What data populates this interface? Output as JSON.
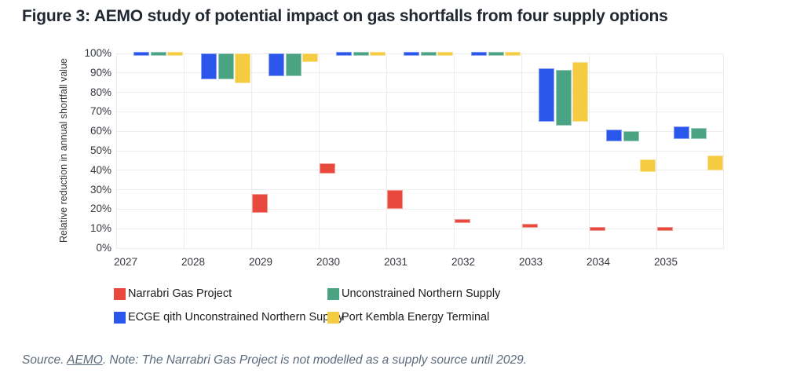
{
  "title": "Figure 3: AEMO study of potential impact on gas shortfalls from four supply options",
  "source_note": {
    "prefix": "Source. ",
    "link_text": "AEMO",
    "suffix": ". Note: The Narrabri Gas Project is not modelled as a supply source until 2029."
  },
  "colors": {
    "narrabri_red": "#e8493c",
    "ecge_blue": "#2a56ec",
    "northern_green": "#4aa383",
    "port_kembla_yellow": "#f4cb41",
    "title_text": "#212832",
    "axis_text": "#34383e",
    "source_text": "#5b6b7d",
    "gridline": "#ececec"
  },
  "chart_data": {
    "type": "bar",
    "subtype": "floating-range-columns",
    "title": "Figure 3: AEMO study of potential impact on gas shortfalls from four supply options",
    "ylabel": "Relative reduction in annual shortfall value",
    "xlabel": "",
    "ylim": [
      0,
      100
    ],
    "ytick_step": 10,
    "ytick_suffix": "%",
    "grid": true,
    "legend_position": "bottom",
    "range_meaning": "each bar spans [min,max] percent relative reduction in annual shortfall value",
    "categories": [
      "2027",
      "2028",
      "2029",
      "2030",
      "2031",
      "2032",
      "2033",
      "2034",
      "2035"
    ],
    "series": [
      {
        "key": "narrabri-gas-project",
        "name": "Narrabri Gas Project",
        "color": "#e8493c",
        "ranges": [
          null,
          null,
          [
            18,
            28
          ],
          [
            38.5,
            43.5
          ],
          [
            20,
            30
          ],
          [
            13,
            14.5
          ],
          [
            10.5,
            12.5
          ],
          [
            9,
            11
          ],
          [
            9,
            11
          ]
        ]
      },
      {
        "key": "ecge-with-unconstrained-northern-supply",
        "name": "ECGE qith Unconstrained Northern Supply",
        "color": "#2a56ec",
        "ranges": [
          [
            99.5,
            100
          ],
          [
            86.5,
            100
          ],
          [
            88.5,
            100
          ],
          [
            99.5,
            100
          ],
          [
            99.5,
            100
          ],
          [
            99.5,
            100
          ],
          [
            65,
            92.5
          ],
          [
            55,
            61
          ],
          [
            56,
            62.5
          ]
        ]
      },
      {
        "key": "unconstrained-northern-supply",
        "name": "Unconstrained Northern Supply",
        "color": "#4aa383",
        "ranges": [
          [
            99.5,
            100
          ],
          [
            86.5,
            100
          ],
          [
            88.5,
            100
          ],
          [
            99.5,
            100
          ],
          [
            99.5,
            100
          ],
          [
            99.5,
            100
          ],
          [
            63,
            91.5
          ],
          [
            55,
            60
          ],
          [
            56,
            61.5
          ]
        ]
      },
      {
        "key": "port-kembla-energy-terminal",
        "name": "Port Kembla Energy Terminal",
        "color": "#f4cb41",
        "ranges": [
          [
            99.5,
            100
          ],
          [
            84.5,
            100
          ],
          [
            95.5,
            100
          ],
          [
            99.5,
            100
          ],
          [
            99.5,
            100
          ],
          [
            99.5,
            100
          ],
          [
            65,
            95.5
          ],
          [
            39,
            45.5
          ],
          [
            40,
            47.5
          ]
        ]
      }
    ],
    "legend": {
      "items": [
        {
          "label": "Narrabri Gas Project",
          "color": "#e8493c"
        },
        {
          "label": "Unconstrained Northern Supply",
          "color": "#4aa383"
        },
        {
          "label": "ECGE qith Unconstrained Northern Supply",
          "color": "#2a56ec"
        },
        {
          "label": "Port Kembla Energy Terminal",
          "color": "#f4cb41"
        }
      ]
    }
  }
}
